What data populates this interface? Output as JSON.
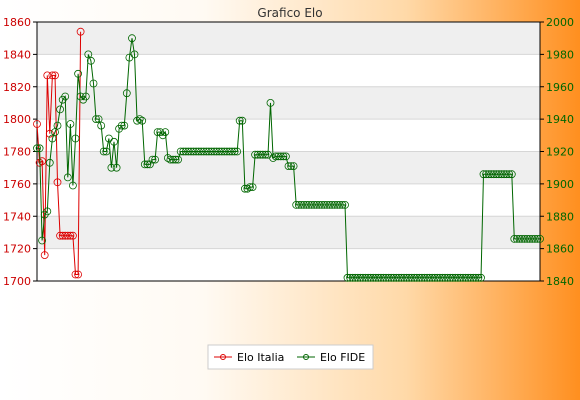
{
  "chart_data": {
    "type": "line",
    "title": "Grafico Elo",
    "grid": true,
    "legend_position": "bottom",
    "y_left": {
      "ylim": [
        1700,
        1860
      ],
      "ticks": [
        1700,
        1720,
        1740,
        1760,
        1780,
        1800,
        1820,
        1840,
        1860
      ],
      "color": "#cc0000"
    },
    "y_right": {
      "ylim": [
        1840,
        2000
      ],
      "ticks": [
        1840,
        1860,
        1880,
        1900,
        1920,
        1940,
        1960,
        1980,
        2000
      ],
      "color": "#006600"
    },
    "series": [
      {
        "name": "Elo Italia",
        "axis": "left",
        "color": "#dd0000",
        "values": [
          1797,
          1773,
          1774,
          1716,
          1827,
          1791,
          1827,
          1827,
          1761,
          1728,
          1728,
          1728,
          1728,
          1728,
          1728,
          1704,
          1704,
          1854
        ]
      },
      {
        "name": "Elo FIDE",
        "axis": "right",
        "color": "#006600",
        "values": [
          1922,
          1922,
          1865,
          1881,
          1883,
          1913,
          1928,
          1932,
          1936,
          1946,
          1952,
          1954,
          1904,
          1937,
          1899,
          1928,
          1968,
          1954,
          1952,
          1954,
          1980,
          1976,
          1962,
          1940,
          1940,
          1936,
          1920,
          1920,
          1928,
          1910,
          1926,
          1910,
          1934,
          1936,
          1936,
          1956,
          1978,
          1990,
          1980,
          1939,
          1940,
          1939,
          1912,
          1912,
          1912,
          1915,
          1915,
          1932,
          1932,
          1930,
          1932,
          1916,
          1915,
          1915,
          1915,
          1915,
          1920,
          1920,
          1920,
          1920,
          1920,
          1920,
          1920,
          1920,
          1920,
          1920,
          1920,
          1920,
          1920,
          1920,
          1920,
          1920,
          1920,
          1920,
          1920,
          1920,
          1920,
          1920,
          1920,
          1939,
          1939,
          1897,
          1897,
          1898,
          1898,
          1918,
          1918,
          1918,
          1918,
          1918,
          1918,
          1950,
          1916,
          1917,
          1917,
          1917,
          1917,
          1917,
          1911,
          1911,
          1911,
          1887,
          1887,
          1887,
          1887,
          1887,
          1887,
          1887,
          1887,
          1887,
          1887,
          1887,
          1887,
          1887,
          1887,
          1887,
          1887,
          1887,
          1887,
          1887,
          1887,
          1842,
          1842,
          1842,
          1842,
          1842,
          1842,
          1842,
          1842,
          1842,
          1842,
          1842,
          1842,
          1842,
          1842,
          1842,
          1842,
          1842,
          1842,
          1842,
          1842,
          1842,
          1842,
          1842,
          1842,
          1842,
          1842,
          1842,
          1842,
          1842,
          1842,
          1842,
          1842,
          1842,
          1842,
          1842,
          1842,
          1842,
          1842,
          1842,
          1842,
          1842,
          1842,
          1842,
          1842,
          1842,
          1842,
          1842,
          1842,
          1842,
          1842,
          1842,
          1842,
          1842,
          1906,
          1906,
          1906,
          1906,
          1906,
          1906,
          1906,
          1906,
          1906,
          1906,
          1906,
          1906,
          1866,
          1866,
          1866,
          1866,
          1866,
          1866,
          1866,
          1866,
          1866,
          1866,
          1866
        ]
      }
    ]
  }
}
